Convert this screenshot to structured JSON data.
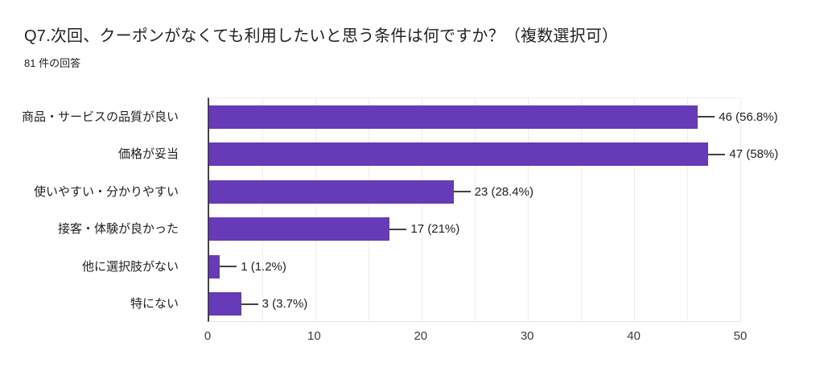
{
  "header": {
    "title": "Q7.次回、クーポンがなくても利用したいと思う条件は何ですか？（複数選択可）",
    "subtitle": "81 件の回答"
  },
  "chart_data": {
    "type": "bar",
    "orientation": "horizontal",
    "title": "Q7.次回、クーポンがなくても利用したいと思う条件は何ですか？（複数選択可）",
    "subtitle": "81 件の回答",
    "categories": [
      "商品・サービスの品質が良い",
      "価格が妥当",
      "使いやすい・分かりやすい",
      "接客・体験が良かった",
      "他に選択肢がない",
      "特にない"
    ],
    "values": [
      46,
      47,
      23,
      17,
      1,
      3
    ],
    "percentages": [
      56.8,
      58,
      28.4,
      21,
      1.2,
      3.7
    ],
    "value_labels": [
      "46 (56.8%)",
      "47 (58%)",
      "23 (28.4%)",
      "17 (21%)",
      "1 (1.2%)",
      "3 (3.7%)"
    ],
    "xlabel": "",
    "ylabel": "",
    "xlim": [
      0,
      50
    ],
    "x_ticks": [
      "0",
      "10",
      "20",
      "30",
      "40",
      "50"
    ],
    "gridline_step": 5,
    "legend": "none",
    "grid": "vertical-light"
  },
  "colors": {
    "bar": "#673ab7",
    "axis_line": "#424242",
    "gridline": "#ededed",
    "text": "#212121",
    "tick_text": "#3c3c3c",
    "background": "#ffffff"
  }
}
